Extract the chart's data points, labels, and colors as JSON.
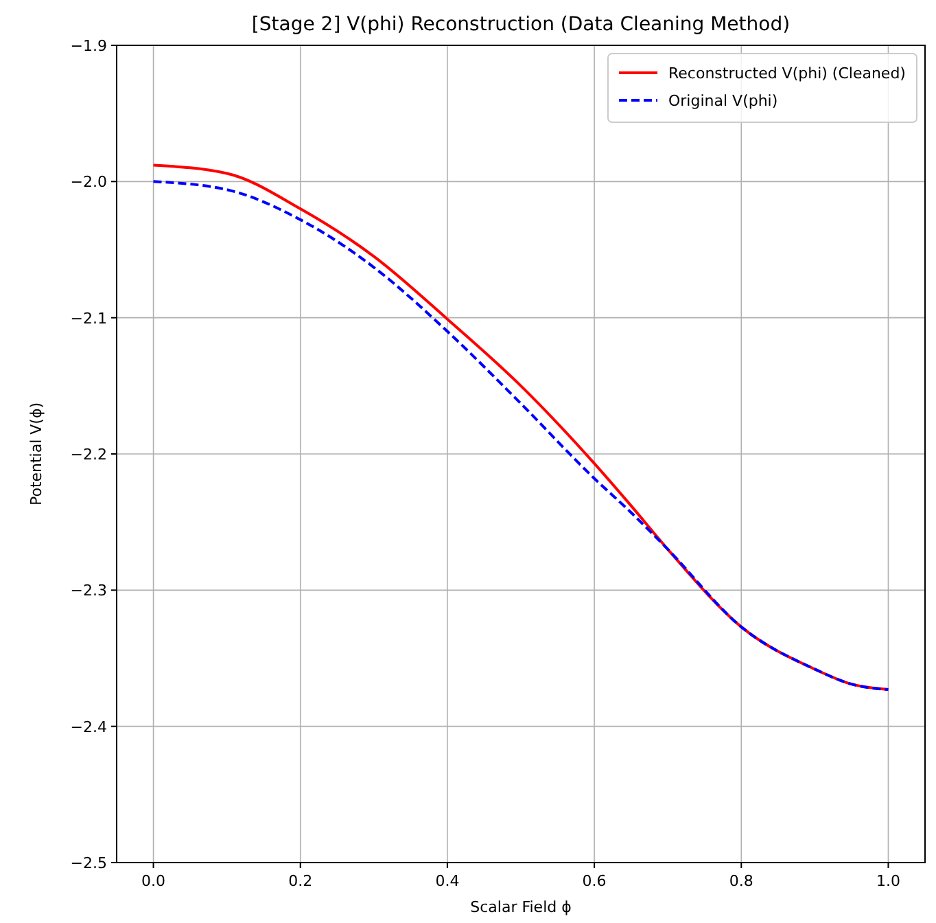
{
  "chart_data": {
    "type": "line",
    "title": "[Stage 2] V(phi) Reconstruction (Data Cleaning Method)",
    "xlabel": "Scalar Field ϕ",
    "ylabel": "Potential V(ϕ)",
    "x": [
      0,
      0.1,
      0.2,
      0.3,
      0.4,
      0.5,
      0.6,
      0.65,
      0.7,
      0.8,
      0.9,
      0.95,
      1.0
    ],
    "series": [
      {
        "name": "Reconstructed V(phi) (Cleaned)",
        "color": "#ff0000",
        "line_style": "solid",
        "values": [
          -1.988,
          -1.994,
          -2.02,
          -2.055,
          -2.101,
          -2.15,
          -2.207,
          -2.238,
          -2.27,
          -2.327,
          -2.358,
          -2.369,
          -2.373
        ]
      },
      {
        "name": "Original V(phi)",
        "color": "#0000ff",
        "line_style": "dashed",
        "values": [
          -2.0,
          -2.006,
          -2.028,
          -2.063,
          -2.11,
          -2.163,
          -2.218,
          -2.243,
          -2.27,
          -2.327,
          -2.358,
          -2.369,
          -2.373
        ]
      }
    ],
    "xlim": [
      -0.05,
      1.05
    ],
    "xticks": [
      {
        "value": 0,
        "label": "0.0"
      },
      0.2,
      0.4,
      0.6,
      0.8,
      {
        "value": 1,
        "label": "1.0"
      }
    ],
    "ylim": [
      -2.5,
      -1.9
    ],
    "yticks": [
      {
        "value": -2.5,
        "label": "−2.5"
      },
      {
        "value": -2.4,
        "label": "−2.4"
      },
      {
        "value": -2.3,
        "label": "−2.3"
      },
      {
        "value": -2.2,
        "label": "−2.2"
      },
      {
        "value": -2.1,
        "label": "−2.1"
      },
      {
        "value": -2.0,
        "label": "−2.0"
      },
      {
        "value": -1.9,
        "label": "−1.9"
      }
    ],
    "grid": true,
    "legend": "top right"
  }
}
